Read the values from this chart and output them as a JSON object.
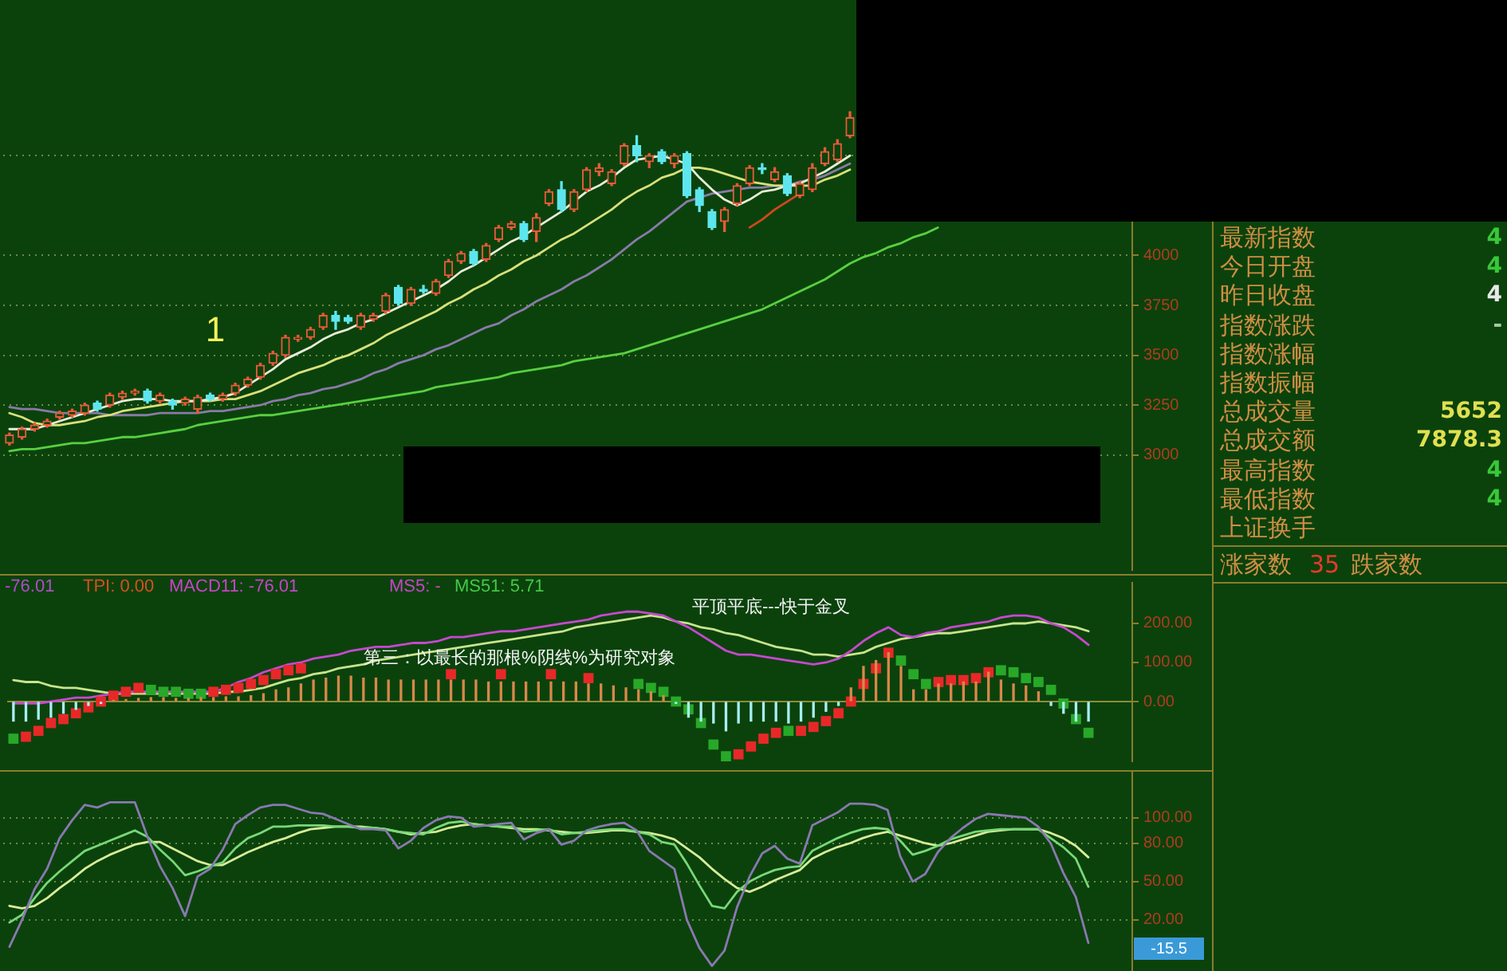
{
  "chart_data": [
    {
      "type": "candlestick",
      "categories": [
        null,
        null,
        null,
        null,
        null,
        null,
        null,
        null,
        null,
        null,
        null,
        null,
        null,
        null,
        null,
        null,
        null,
        null,
        null,
        null,
        null,
        null,
        null,
        null,
        null,
        null,
        null,
        null,
        null,
        null,
        null,
        null,
        null,
        null,
        null,
        null,
        null,
        null,
        null,
        null,
        null,
        null,
        null,
        null,
        null,
        null,
        null,
        null,
        null,
        null,
        null,
        null,
        null,
        null,
        null,
        null,
        null,
        null,
        null,
        null,
        null,
        null,
        null,
        null,
        null,
        null,
        null,
        null,
        null,
        null,
        null,
        null,
        null,
        null,
        null,
        null,
        null,
        null,
        null,
        null,
        null,
        null,
        null,
        null,
        null,
        null,
        null,
        null,
        null,
        null
      ],
      "ohlc": [
        [
          3060,
          3110,
          3050,
          3100
        ],
        [
          3090,
          3140,
          3080,
          3130
        ],
        [
          3130,
          3160,
          3120,
          3150
        ],
        [
          3150,
          3180,
          3140,
          3170
        ],
        [
          3190,
          3220,
          3180,
          3210
        ],
        [
          3200,
          3230,
          3190,
          3220
        ],
        [
          3210,
          3260,
          3200,
          3250
        ],
        [
          3260,
          3270,
          3220,
          3230
        ],
        [
          3250,
          3310,
          3240,
          3300
        ],
        [
          3290,
          3320,
          3280,
          3310
        ],
        [
          3310,
          3330,
          3300,
          3320
        ],
        [
          3320,
          3330,
          3260,
          3270
        ],
        [
          3270,
          3310,
          3260,
          3300
        ],
        [
          3270,
          3280,
          3230,
          3250
        ],
        [
          3260,
          3290,
          3250,
          3280
        ],
        [
          3230,
          3300,
          3210,
          3290
        ],
        [
          3300,
          3310,
          3270,
          3280
        ],
        [
          3280,
          3310,
          3270,
          3300
        ],
        [
          3310,
          3360,
          3300,
          3350
        ],
        [
          3350,
          3390,
          3340,
          3380
        ],
        [
          3390,
          3460,
          3380,
          3450
        ],
        [
          3460,
          3520,
          3450,
          3510
        ],
        [
          3500,
          3600,
          3490,
          3590
        ],
        [
          3580,
          3600,
          3570,
          3590
        ],
        [
          3590,
          3640,
          3580,
          3630
        ],
        [
          3640,
          3710,
          3630,
          3700
        ],
        [
          3700,
          3720,
          3630,
          3670
        ],
        [
          3690,
          3700,
          3660,
          3670
        ],
        [
          3640,
          3710,
          3630,
          3700
        ],
        [
          3680,
          3710,
          3670,
          3700
        ],
        [
          3720,
          3810,
          3710,
          3800
        ],
        [
          3840,
          3850,
          3750,
          3760
        ],
        [
          3760,
          3840,
          3750,
          3830
        ],
        [
          3830,
          3850,
          3810,
          3820
        ],
        [
          3810,
          3880,
          3800,
          3870
        ],
        [
          3900,
          3980,
          3890,
          3970
        ],
        [
          3970,
          4020,
          3960,
          4010
        ],
        [
          4020,
          4030,
          3950,
          3960
        ],
        [
          3980,
          4060,
          3970,
          4050
        ],
        [
          4080,
          4150,
          4070,
          4140
        ],
        [
          4140,
          4170,
          4130,
          4160
        ],
        [
          4160,
          4170,
          4070,
          4080
        ],
        [
          4120,
          4210,
          4070,
          4190
        ],
        [
          4260,
          4330,
          4250,
          4320
        ],
        [
          4330,
          4370,
          4220,
          4230
        ],
        [
          4230,
          4330,
          4220,
          4320
        ],
        [
          4330,
          4440,
          4320,
          4430
        ],
        [
          4420,
          4460,
          4400,
          4440
        ],
        [
          4360,
          4430,
          4350,
          4420
        ],
        [
          4460,
          4560,
          4450,
          4550
        ],
        [
          4550,
          4600,
          4470,
          4500
        ],
        [
          4470,
          4510,
          4440,
          4500
        ],
        [
          4520,
          4530,
          4460,
          4470
        ],
        [
          4460,
          4510,
          4440,
          4500
        ],
        [
          4510,
          4520,
          4290,
          4300
        ],
        [
          4330,
          4340,
          4220,
          4250
        ],
        [
          4220,
          4230,
          4130,
          4140
        ],
        [
          4170,
          4240,
          4120,
          4230
        ],
        [
          4260,
          4360,
          4250,
          4350
        ],
        [
          4360,
          4450,
          4350,
          4440
        ],
        [
          4440,
          4460,
          4410,
          4430
        ],
        [
          4380,
          4440,
          4370,
          4420
        ],
        [
          4400,
          4410,
          4300,
          4310
        ],
        [
          4300,
          4370,
          4290,
          4360
        ],
        [
          4330,
          4460,
          4320,
          4440
        ],
        [
          4460,
          4540,
          4450,
          4520
        ],
        [
          4480,
          4580,
          4470,
          4560
        ],
        [
          4600,
          4720,
          4590,
          4690
        ],
        null,
        null,
        null,
        null,
        null,
        null,
        null,
        null,
        null,
        null,
        null,
        null,
        null,
        null,
        null,
        null,
        null,
        null,
        null,
        null,
        null,
        null
      ],
      "colors": [
        "#e85a3a",
        "#e85a3a",
        "#e85a3a",
        "#e85a3a",
        "#e85a3a",
        "#e85a3a",
        "#e85a3a",
        "#5ee6ee",
        "#e85a3a",
        "#e85a3a",
        "#e85a3a",
        "#5ee6ee",
        "#e85a3a",
        "#5ee6ee",
        "#e85a3a",
        "#e85a3a",
        "#5ee6ee",
        "#e85a3a",
        "#e85a3a",
        "#e85a3a",
        "#e85a3a",
        "#e85a3a",
        "#e85a3a",
        "#e85a3a",
        "#e85a3a",
        "#e85a3a",
        "#5ee6ee",
        "#5ee6ee",
        "#e85a3a",
        "#e85a3a",
        "#e85a3a",
        "#5ee6ee",
        "#e85a3a",
        "#5ee6ee",
        "#e85a3a",
        "#e85a3a",
        "#e85a3a",
        "#5ee6ee",
        "#e85a3a",
        "#e85a3a",
        "#e85a3a",
        "#5ee6ee",
        "#e85a3a",
        "#e85a3a",
        "#5ee6ee",
        "#e85a3a",
        "#e85a3a",
        "#e85a3a",
        "#e85a3a",
        "#e85a3a",
        "#5ee6ee",
        "#e85a3a",
        "#5ee6ee",
        "#e85a3a",
        "#5ee6ee",
        "#5ee6ee",
        "#5ee6ee",
        "#e85a3a",
        "#e85a3a",
        "#e85a3a",
        "#5ee6ee",
        "#e85a3a",
        "#5ee6ee",
        "#e85a3a",
        "#e85a3a",
        "#e85a3a",
        "#e85a3a",
        "#e85a3a",
        null,
        null,
        null,
        null,
        null,
        null,
        null,
        null,
        null,
        null,
        null,
        null,
        null,
        null,
        null,
        null,
        null,
        null,
        null,
        null,
        null,
        null
      ],
      "series": [
        {
          "type": "line",
          "color": "#e8ecd8",
          "values": [
            3130,
            3130,
            3130,
            3150,
            3170,
            3190,
            3210,
            3230,
            3250,
            3270,
            3280,
            3280,
            3280,
            3270,
            3270,
            3270,
            3280,
            3290,
            3310,
            3350,
            3390,
            3430,
            3480,
            3510,
            3540,
            3580,
            3610,
            3630,
            3660,
            3680,
            3710,
            3740,
            3770,
            3800,
            3830,
            3870,
            3920,
            3950,
            3990,
            4030,
            4070,
            4100,
            4140,
            4180,
            4220,
            4270,
            4320,
            4350,
            4390,
            4440,
            4480,
            4490,
            4500,
            4480,
            4460,
            4390,
            4330,
            4280,
            4250,
            4280,
            4320,
            4330,
            4350,
            4360,
            4390,
            4420,
            4460,
            4500,
            null,
            null,
            null,
            null,
            null,
            null,
            null,
            null,
            null,
            null,
            null,
            null,
            null,
            null,
            null,
            null,
            null,
            null,
            null,
            null,
            null,
            null
          ]
        },
        {
          "type": "line",
          "color": "#d8e07a",
          "values": [
            3210,
            3190,
            3160,
            3150,
            3150,
            3160,
            3170,
            3190,
            3200,
            3220,
            3230,
            3240,
            3250,
            3260,
            3270,
            3270,
            3270,
            3280,
            3280,
            3300,
            3320,
            3350,
            3380,
            3410,
            3430,
            3450,
            3480,
            3500,
            3530,
            3560,
            3600,
            3630,
            3660,
            3690,
            3720,
            3760,
            3790,
            3830,
            3860,
            3900,
            3930,
            3970,
            4000,
            4040,
            4080,
            4110,
            4150,
            4190,
            4230,
            4280,
            4320,
            4350,
            4390,
            4410,
            4440,
            4440,
            4430,
            4410,
            4390,
            4370,
            4360,
            4350,
            4350,
            4350,
            4350,
            4380,
            4400,
            4430,
            null,
            null,
            null,
            null,
            null,
            null,
            null,
            null,
            null,
            null,
            null,
            null,
            null,
            null,
            null,
            null,
            null,
            null,
            null,
            null,
            null,
            null
          ]
        },
        {
          "type": "line",
          "color": "#8a7aa8",
          "values": [
            3240,
            3230,
            3230,
            3220,
            3210,
            3210,
            3210,
            3210,
            3200,
            3200,
            3200,
            3200,
            3210,
            3210,
            3210,
            3210,
            3220,
            3220,
            3230,
            3240,
            3250,
            3270,
            3280,
            3300,
            3310,
            3330,
            3340,
            3360,
            3380,
            3410,
            3430,
            3460,
            3480,
            3500,
            3530,
            3550,
            3580,
            3610,
            3640,
            3660,
            3700,
            3730,
            3770,
            3800,
            3830,
            3870,
            3900,
            3940,
            3980,
            4030,
            4080,
            4120,
            4170,
            4220,
            4270,
            4290,
            4310,
            4320,
            4330,
            4340,
            4340,
            4350,
            4350,
            4370,
            4380,
            4400,
            4430,
            4460,
            null,
            null,
            null,
            null,
            null,
            null,
            null,
            null,
            null,
            null,
            null,
            null,
            null,
            null,
            null,
            null,
            null,
            null,
            null,
            null,
            null,
            null
          ]
        },
        {
          "type": "line",
          "color": "#58d040",
          "values": [
            3020,
            3030,
            3030,
            3040,
            3050,
            3060,
            3060,
            3070,
            3080,
            3090,
            3090,
            3100,
            3110,
            3120,
            3130,
            3150,
            3160,
            3170,
            3180,
            3190,
            3200,
            3200,
            3210,
            3220,
            3230,
            3240,
            3250,
            3260,
            3270,
            3280,
            3290,
            3300,
            3310,
            3320,
            3340,
            3350,
            3360,
            3370,
            3380,
            3390,
            3410,
            3420,
            3430,
            3440,
            3450,
            3470,
            3480,
            3490,
            3500,
            3510,
            3530,
            3550,
            3570,
            3590,
            3610,
            3630,
            3650,
            3670,
            3690,
            3710,
            3730,
            3760,
            3790,
            3820,
            3850,
            3880,
            3920,
            3960,
            3990,
            4010,
            4040,
            4060,
            4090,
            4110,
            4140,
            null,
            null,
            null,
            null,
            null,
            null,
            null,
            null,
            null,
            null,
            null,
            null,
            null,
            null,
            null
          ]
        },
        {
          "type": "line",
          "color": "#d0481c",
          "values": [
            null,
            null,
            null,
            null,
            null,
            null,
            null,
            null,
            null,
            null,
            null,
            null,
            null,
            null,
            null,
            null,
            null,
            null,
            null,
            null,
            null,
            null,
            null,
            null,
            null,
            null,
            null,
            null,
            null,
            null,
            null,
            null,
            null,
            null,
            null,
            null,
            null,
            null,
            null,
            null,
            null,
            null,
            null,
            null,
            null,
            null,
            null,
            null,
            null,
            null,
            null,
            null,
            null,
            null,
            null,
            null,
            null,
            null,
            null,
            4140,
            4180,
            4230,
            4270,
            4310,
            null,
            null,
            null,
            null,
            null,
            null,
            null,
            null,
            null,
            null,
            null,
            null,
            null,
            null,
            null,
            null,
            null,
            null,
            null,
            null,
            null,
            null,
            null,
            null,
            null,
            null
          ]
        }
      ],
      "ylim": [
        2420,
        5280
      ],
      "yticks": [
        3000,
        3250,
        3500,
        3750,
        4000,
        {
          "value": 4500,
          "label": null
        }
      ],
      "grid": "y",
      "tick_labels": "y",
      "annotations": [
        "1"
      ]
    },
    {
      "type": "bar",
      "categories": [
        null,
        null,
        null,
        null,
        null,
        null,
        null,
        null,
        null,
        null,
        null,
        null,
        null,
        null,
        null,
        null,
        null,
        null,
        null,
        null,
        null,
        null,
        null,
        null,
        null,
        null,
        null,
        null,
        null,
        null,
        null,
        null,
        null,
        null,
        null,
        null,
        null,
        null,
        null,
        null,
        null,
        null,
        null,
        null,
        null,
        null,
        null,
        null,
        null,
        null,
        null,
        null,
        null,
        null,
        null,
        null,
        null,
        null,
        null,
        null,
        null,
        null,
        null,
        null,
        null,
        null,
        null,
        null,
        null,
        null,
        null,
        null,
        null,
        null,
        null,
        null,
        null,
        null,
        null,
        null,
        null,
        null,
        null,
        null,
        null,
        null,
        null,
        null,
        null,
        null
      ],
      "series": [
        {
          "values": [
            -50,
            -50,
            -45,
            -40,
            -30,
            -20,
            -10,
            -5,
            3,
            5,
            8,
            10,
            10,
            8,
            8,
            10,
            10,
            12,
            12,
            15,
            20,
            30,
            35,
            45,
            55,
            60,
            65,
            65,
            60,
            60,
            55,
            55,
            55,
            55,
            55,
            55,
            55,
            55,
            50,
            50,
            50,
            50,
            50,
            50,
            50,
            50,
            45,
            45,
            40,
            35,
            30,
            25,
            15,
            -5,
            -40,
            -50,
            -55,
            -75,
            -55,
            -50,
            -50,
            -50,
            -55,
            -50,
            -40,
            -25,
            -10,
            35,
            90,
            105,
            125,
            90,
            30,
            30,
            45,
            45,
            50,
            50,
            75,
            55,
            45,
            40,
            25,
            -10,
            -30,
            -50,
            -50,
            null,
            null,
            null
          ],
          "colors": [
            "#a8eef4",
            "#a8eef4",
            "#a8eef4",
            "#a8eef4",
            "#a8eef4",
            "#a8eef4",
            "#a8eef4",
            "#a8eef4",
            "#d8884a",
            "#d8884a",
            "#d8884a",
            "#d8884a",
            "#d8884a",
            "#d8884a",
            "#d8884a",
            "#d8884a",
            "#d8884a",
            "#d8884a",
            "#d8884a",
            "#d8884a",
            "#d8884a",
            "#d8884a",
            "#d8884a",
            "#d8884a",
            "#d8884a",
            "#d8884a",
            "#d8884a",
            "#d8884a",
            "#d8884a",
            "#d8884a",
            "#d8884a",
            "#d8884a",
            "#d8884a",
            "#d8884a",
            "#d8884a",
            "#d8884a",
            "#d8884a",
            "#d8884a",
            "#d8884a",
            "#d8884a",
            "#d8884a",
            "#d8884a",
            "#d8884a",
            "#d8884a",
            "#d8884a",
            "#d8884a",
            "#d8884a",
            "#d8884a",
            "#d8884a",
            "#d8884a",
            "#d8884a",
            "#d8884a",
            "#d8884a",
            "#a8eef4",
            "#a8eef4",
            "#a8eef4",
            "#a8eef4",
            "#a8eef4",
            "#a8eef4",
            "#a8eef4",
            "#a8eef4",
            "#a8eef4",
            "#a8eef4",
            "#a8eef4",
            "#a8eef4",
            "#a8eef4",
            "#a8eef4",
            "#d8884a",
            "#d8884a",
            "#d8884a",
            "#d8884a",
            "#d8884a",
            "#d8884a",
            "#d8884a",
            "#d8884a",
            "#d8884a",
            "#d8884a",
            "#d8884a",
            "#d8884a",
            "#d8884a",
            "#d8884a",
            "#d8884a",
            "#d8884a",
            "#a8eef4",
            "#a8eef4",
            "#a8eef4",
            "#a8eef4",
            null,
            null,
            null
          ]
        },
        {
          "type": "line",
          "color": "#c848d0",
          "values": [
            -5,
            -5,
            -5,
            0,
            5,
            10,
            10,
            15,
            20,
            25,
            25,
            25,
            25,
            25,
            25,
            25,
            25,
            35,
            50,
            60,
            75,
            85,
            95,
            100,
            110,
            115,
            120,
            130,
            135,
            140,
            140,
            145,
            150,
            150,
            155,
            165,
            165,
            170,
            175,
            180,
            180,
            185,
            190,
            195,
            200,
            205,
            210,
            220,
            225,
            230,
            230,
            225,
            220,
            205,
            190,
            170,
            150,
            130,
            120,
            120,
            115,
            110,
            105,
            100,
            95,
            100,
            110,
            130,
            155,
            175,
            190,
            170,
            165,
            175,
            180,
            190,
            195,
            200,
            205,
            215,
            220,
            220,
            215,
            200,
            190,
            170,
            145,
            null,
            null,
            null
          ]
        },
        {
          "type": "line",
          "color": "#c8e48c",
          "values": [
            55,
            50,
            50,
            40,
            35,
            35,
            30,
            25,
            20,
            20,
            20,
            20,
            20,
            20,
            20,
            20,
            20,
            25,
            25,
            30,
            35,
            45,
            55,
            60,
            70,
            75,
            85,
            90,
            95,
            105,
            110,
            115,
            120,
            125,
            130,
            135,
            140,
            145,
            150,
            155,
            160,
            165,
            170,
            175,
            180,
            190,
            195,
            200,
            205,
            210,
            215,
            220,
            215,
            205,
            200,
            190,
            185,
            175,
            170,
            160,
            150,
            140,
            135,
            130,
            120,
            120,
            115,
            120,
            125,
            140,
            150,
            160,
            165,
            170,
            175,
            175,
            180,
            185,
            190,
            195,
            200,
            200,
            205,
            200,
            195,
            190,
            180,
            null,
            null,
            null
          ]
        },
        {
          "type": "scatter",
          "marker": "square",
          "values": [
            -95,
            -90,
            -75,
            -55,
            -45,
            -30,
            -15,
            0,
            15,
            25,
            35,
            30,
            25,
            25,
            20,
            20,
            25,
            30,
            35,
            45,
            55,
            70,
            80,
            85,
            null,
            null,
            null,
            null,
            null,
            null,
            null,
            null,
            null,
            null,
            null,
            70,
            null,
            null,
            null,
            70,
            null,
            null,
            null,
            70,
            null,
            null,
            60,
            null,
            null,
            null,
            45,
            35,
            25,
            0,
            -20,
            -55,
            -110,
            -140,
            -135,
            -115,
            -95,
            -80,
            -75,
            -75,
            -65,
            -50,
            -30,
            0,
            45,
            85,
            125,
            105,
            70,
            45,
            50,
            55,
            55,
            60,
            75,
            80,
            75,
            60,
            50,
            30,
            -5,
            -45,
            -80,
            null,
            null,
            null
          ],
          "colors": [
            "#28a828",
            "#e82828",
            "#e82828",
            "#e82828",
            "#e82828",
            "#e82828",
            "#e82828",
            "#e82828",
            "#e82828",
            "#e82828",
            "#e82828",
            "#28a828",
            "#28a828",
            "#28a828",
            "#28a828",
            "#28a828",
            "#e82828",
            "#e82828",
            "#e82828",
            "#e82828",
            "#e82828",
            "#e82828",
            "#e82828",
            "#e82828",
            null,
            null,
            null,
            null,
            null,
            null,
            null,
            null,
            null,
            null,
            null,
            "#e82828",
            null,
            null,
            null,
            "#e82828",
            null,
            null,
            null,
            "#e82828",
            null,
            null,
            "#e82828",
            null,
            null,
            null,
            "#28a828",
            "#28a828",
            "#28a828",
            "#28a828",
            "#28a828",
            "#28a828",
            "#28a828",
            "#28a828",
            "#e82828",
            "#e82828",
            "#e82828",
            "#e82828",
            "#28a828",
            "#e82828",
            "#e82828",
            "#e82828",
            "#e82828",
            "#e82828",
            "#e82828",
            "#e82828",
            "#e82828",
            "#28a828",
            "#28a828",
            "#28a828",
            "#e82828",
            "#e82828",
            "#e82828",
            "#e82828",
            "#e82828",
            "#28a828",
            "#28a828",
            "#28a828",
            "#28a828",
            "#28a828",
            "#28a828",
            "#28a828",
            "#28a828",
            null,
            null,
            null
          ]
        }
      ],
      "ylim": [
        -153,
        304
      ],
      "yticks": [
        {
          "value": 0,
          "label": "0.00"
        },
        {
          "value": 100,
          "label": "100.00"
        },
        {
          "value": 200,
          "label": "200.00"
        }
      ],
      "tick_labels": "y",
      "ref_lines": [
        {
          "axis": "y",
          "value": 0,
          "color": "#8c8c3c"
        }
      ],
      "annotations": [
        "-76.01",
        "TPI: 0.00",
        "MACD11: -76.01",
        "MS5: -",
        "MS51: 5.71",
        "平顶平底---快于金叉",
        "第三：以最长的那根%阴线%为研究对象"
      ]
    },
    {
      "type": "line",
      "categories": [
        null,
        null,
        null,
        null,
        null,
        null,
        null,
        null,
        null,
        null,
        null,
        null,
        null,
        null,
        null,
        null,
        null,
        null,
        null,
        null,
        null,
        null,
        null,
        null,
        null,
        null,
        null,
        null,
        null,
        null,
        null,
        null,
        null,
        null,
        null,
        null,
        null,
        null,
        null,
        null,
        null,
        null,
        null,
        null,
        null,
        null,
        null,
        null,
        null,
        null,
        null,
        null,
        null,
        null,
        null,
        null,
        null,
        null,
        null,
        null,
        null,
        null,
        null,
        null,
        null,
        null,
        null,
        null,
        null,
        null,
        null,
        null,
        null,
        null,
        null,
        null,
        null,
        null,
        null,
        null,
        null,
        null,
        null,
        null,
        null,
        null,
        null,
        null,
        null,
        null
      ],
      "series": [
        {
          "color": "#8a78b0",
          "values": [
            -1,
            20,
            44,
            60,
            84,
            98,
            110,
            108,
            112,
            112,
            112,
            85,
            62,
            45,
            23,
            54,
            60,
            75,
            95,
            102,
            108,
            110,
            110,
            107,
            104,
            103,
            99,
            95,
            91,
            91,
            90,
            76,
            82,
            92,
            98,
            101,
            100,
            93,
            94,
            95,
            96,
            83,
            88,
            91,
            79,
            82,
            90,
            93,
            95,
            96,
            90,
            74,
            67,
            60,
            20,
            -2,
            -16,
            -4,
            30,
            54,
            72,
            78,
            68,
            64,
            94,
            99,
            104,
            111,
            111,
            110,
            106,
            70,
            50,
            56,
            73,
            84,
            92,
            99,
            103,
            102,
            101,
            100,
            93,
            80,
            57,
            38,
            2,
            null,
            null,
            null
          ]
        },
        {
          "color": "#78d878",
          "values": [
            18,
            24,
            37,
            49,
            58,
            66,
            74,
            78,
            82,
            86,
            90,
            85,
            75,
            66,
            55,
            58,
            62,
            65,
            76,
            84,
            88,
            93,
            93,
            94,
            94,
            94,
            93,
            93,
            92,
            92,
            91,
            89,
            88,
            87,
            92,
            96,
            97,
            95,
            94,
            93,
            93,
            89,
            90,
            91,
            87,
            88,
            89,
            90,
            91,
            91,
            89,
            87,
            81,
            79,
            64,
            47,
            31,
            29,
            42,
            50,
            55,
            59,
            61,
            62,
            74,
            79,
            84,
            88,
            91,
            92,
            91,
            82,
            71,
            74,
            78,
            83,
            86,
            89,
            90,
            91,
            91,
            91,
            91,
            84,
            77,
            68,
            46,
            null,
            null,
            null
          ]
        },
        {
          "color": "#d8ec98",
          "values": [
            31,
            29,
            31,
            37,
            45,
            52,
            60,
            66,
            71,
            75,
            79,
            81,
            81,
            76,
            71,
            66,
            63,
            63,
            68,
            73,
            77,
            81,
            84,
            88,
            91,
            92,
            93,
            93,
            93,
            92,
            91,
            89,
            87,
            88,
            89,
            92,
            94,
            95,
            94,
            93,
            92,
            91,
            91,
            90,
            89,
            88,
            88,
            89,
            90,
            90,
            89,
            88,
            86,
            83,
            76,
            69,
            60,
            52,
            45,
            42,
            46,
            51,
            55,
            59,
            68,
            73,
            77,
            80,
            84,
            87,
            89,
            86,
            83,
            80,
            78,
            80,
            83,
            86,
            89,
            90,
            91,
            91,
            91,
            88,
            84,
            78,
            69,
            null,
            null,
            null
          ]
        }
      ],
      "ylim": [
        -20,
        136
      ],
      "yticks": [
        {
          "value": 20,
          "label": "20.00"
        },
        {
          "value": 50,
          "label": "50.00"
        },
        {
          "value": 80,
          "label": "80.00"
        },
        {
          "value": 100,
          "label": "100.00"
        }
      ],
      "grid": "y",
      "tick_labels": "y",
      "annotations": [
        "-15.5"
      ]
    },
    {
      "type": "other",
      "categories": [
        "最新指数",
        "今日开盘",
        "昨日收盘",
        "指数涨跌",
        "指数涨幅",
        "指数振幅",
        "总成交量",
        "总成交额",
        "最高指数",
        "最低指数",
        "上证换手"
      ],
      "value_labels": [
        "4",
        "4",
        "4",
        "-",
        null,
        null,
        "5652",
        "7878.3",
        "4",
        "4",
        null
      ],
      "colors": [
        "#38c838",
        "#38c838",
        "#e8e8e8",
        "#a8c8a8",
        null,
        null,
        "#e0e050",
        "#e0e050",
        "#38c838",
        "#38c838",
        null
      ],
      "annotations": [
        "涨家数",
        "35",
        "跌家数"
      ]
    }
  ]
}
